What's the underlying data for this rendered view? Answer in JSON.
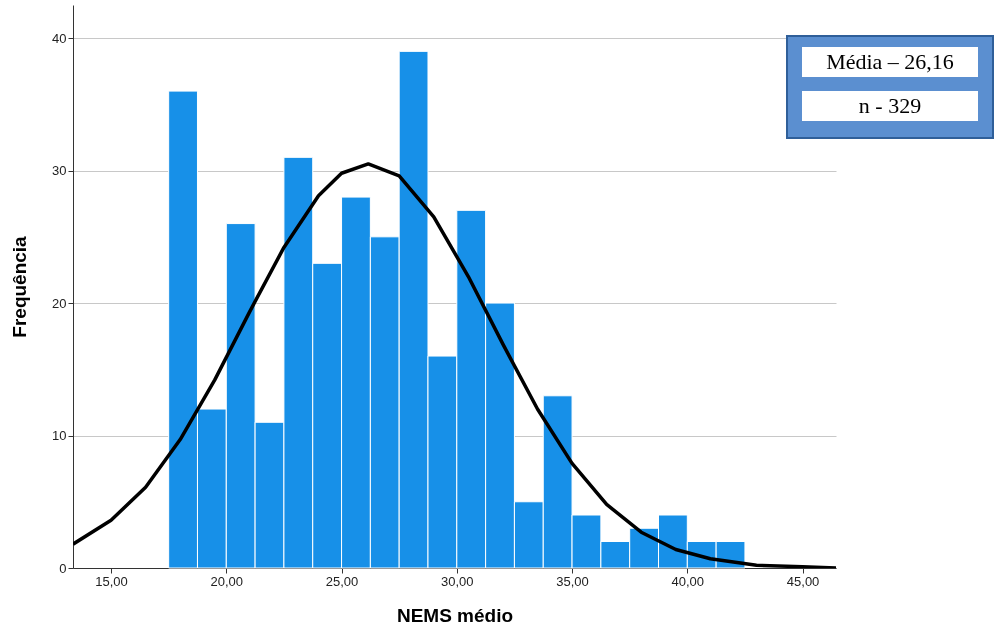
{
  "chart_data": {
    "type": "histogram",
    "xlabel": "NEMS médio",
    "ylabel": "Frequência",
    "xlim": [
      13.35,
      46.45
    ],
    "xticks": [
      {
        "value": 15,
        "label": "15,00"
      },
      {
        "value": 20,
        "label": "20,00"
      },
      {
        "value": 25,
        "label": "25,00"
      },
      {
        "value": 30,
        "label": "30,00"
      },
      {
        "value": 35,
        "label": "35,00"
      },
      {
        "value": 40,
        "label": "40,00"
      },
      {
        "value": 45,
        "label": "45,00"
      }
    ],
    "ylim": [
      0,
      42.5
    ],
    "yticks": [
      0,
      10,
      20,
      30,
      40
    ],
    "grid": "y",
    "annotations": [
      "Média – 26,16",
      "n - 329"
    ],
    "series": [
      {
        "color": "#1790e8",
        "bins": [
          17.5,
          18.75,
          20,
          21.25,
          22.5,
          23.75,
          25,
          26.25,
          27.5,
          28.75,
          30,
          31.25,
          32.5,
          33.75,
          35,
          36.25,
          37.5,
          38.75,
          40,
          41.25,
          42.5
        ],
        "values": [
          36,
          12,
          26,
          11,
          31,
          23,
          28,
          25,
          39,
          16,
          27,
          20,
          5,
          13,
          4,
          2,
          3,
          4,
          2,
          2
        ]
      },
      {
        "type": "line",
        "color": "#000000",
        "x": [
          13.35,
          15,
          16.5,
          18,
          19.5,
          21,
          22.5,
          24,
          25,
          26.16,
          27.5,
          29,
          30.5,
          32,
          33.5,
          35,
          36.5,
          38,
          39.5,
          41,
          43,
          45,
          46.45
        ],
        "values": [
          1.8,
          3.6,
          6.1,
          9.7,
          14.2,
          19.3,
          24.2,
          28.1,
          29.8,
          30.5,
          29.6,
          26.5,
          22.0,
          16.9,
          12.0,
          7.9,
          4.8,
          2.7,
          1.4,
          0.7,
          0.2,
          0.1,
          0.0
        ]
      }
    ]
  }
}
